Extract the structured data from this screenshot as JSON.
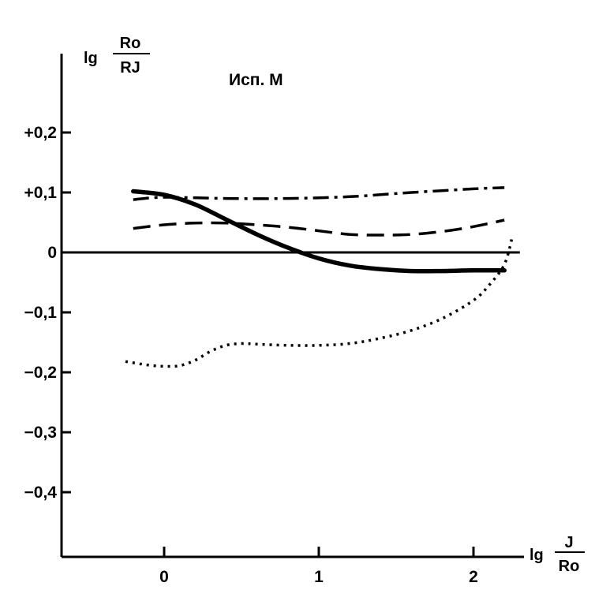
{
  "chart_data": {
    "type": "line",
    "annotation": "Исп. М",
    "ylabel": {
      "prefix": "lg",
      "numerator": "Ro",
      "denominator": "RJ"
    },
    "xlabel": {
      "prefix": "lg",
      "numerator": "J",
      "denominator": "Ro"
    },
    "xlim": [
      -0.6,
      2.35
    ],
    "ylim": [
      -0.5,
      0.32
    ],
    "x_ticks": [
      {
        "value": 0,
        "label": "0"
      },
      {
        "value": 1,
        "label": "1"
      },
      {
        "value": 2,
        "label": "2"
      }
    ],
    "y_ticks": [
      {
        "value": 0.2,
        "label": "+0,2"
      },
      {
        "value": 0.1,
        "label": "+0,1"
      },
      {
        "value": 0,
        "label": "0"
      },
      {
        "value": -0.1,
        "label": "−0,1"
      },
      {
        "value": -0.2,
        "label": "−0,2"
      },
      {
        "value": -0.3,
        "label": "−0,3"
      },
      {
        "value": -0.4,
        "label": "−0,4"
      }
    ],
    "zero_line": {
      "x_end": 2.3
    },
    "series": [
      {
        "style": "solid-thick",
        "x": [
          -0.2,
          0.0,
          0.2,
          0.4,
          0.6,
          0.8,
          1.0,
          1.2,
          1.4,
          1.6,
          1.8,
          2.0,
          2.2
        ],
        "y": [
          0.102,
          0.096,
          0.08,
          0.055,
          0.03,
          0.008,
          -0.01,
          -0.022,
          -0.028,
          -0.031,
          -0.031,
          -0.03,
          -0.03
        ]
      },
      {
        "style": "dash-dot",
        "x": [
          -0.2,
          0.0,
          0.4,
          0.8,
          1.2,
          1.6,
          2.0,
          2.2
        ],
        "y": [
          0.088,
          0.092,
          0.09,
          0.09,
          0.093,
          0.1,
          0.106,
          0.108
        ]
      },
      {
        "style": "dashed",
        "x": [
          -0.2,
          0.0,
          0.2,
          0.4,
          0.6,
          0.8,
          1.0,
          1.2,
          1.4,
          1.6,
          1.8,
          2.0,
          2.2
        ],
        "y": [
          0.04,
          0.046,
          0.049,
          0.049,
          0.046,
          0.042,
          0.036,
          0.03,
          0.029,
          0.03,
          0.035,
          0.043,
          0.054
        ]
      },
      {
        "style": "dotted",
        "x": [
          -0.25,
          -0.1,
          0.0,
          0.1,
          0.2,
          0.3,
          0.4,
          0.5,
          0.6,
          0.8,
          1.0,
          1.2,
          1.4,
          1.6,
          1.8,
          2.0,
          2.1,
          2.2,
          2.25
        ],
        "y": [
          -0.182,
          -0.188,
          -0.19,
          -0.189,
          -0.18,
          -0.165,
          -0.155,
          -0.152,
          -0.153,
          -0.155,
          -0.155,
          -0.152,
          -0.143,
          -0.13,
          -0.11,
          -0.08,
          -0.055,
          -0.02,
          0.025
        ]
      }
    ]
  }
}
